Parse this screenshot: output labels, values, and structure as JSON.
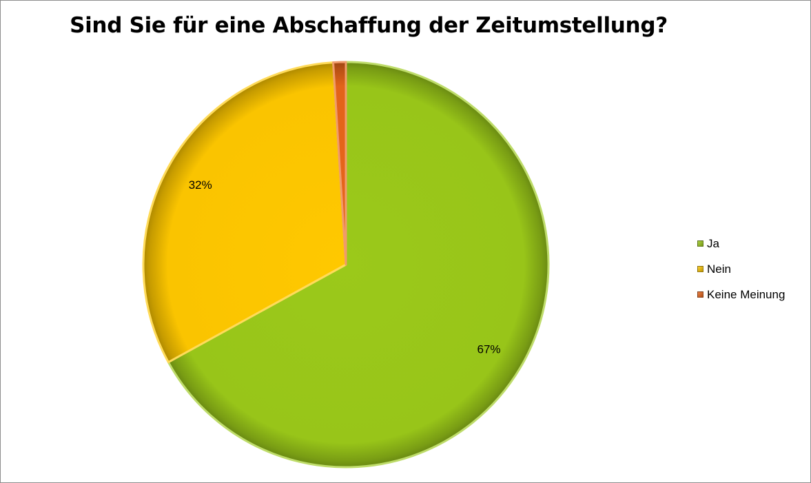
{
  "chart_data": {
    "type": "pie",
    "title": "Sind Sie für eine Abschaffung der Zeitumstellung?",
    "categories": [
      "Ja",
      "Nein",
      "Keine Meinung"
    ],
    "values": [
      67,
      32,
      1
    ],
    "data_labels": [
      "67%",
      "32%",
      ""
    ],
    "colors": [
      "#9bc91a",
      "#ffc800",
      "#e8651a"
    ],
    "legend_position": "right"
  }
}
